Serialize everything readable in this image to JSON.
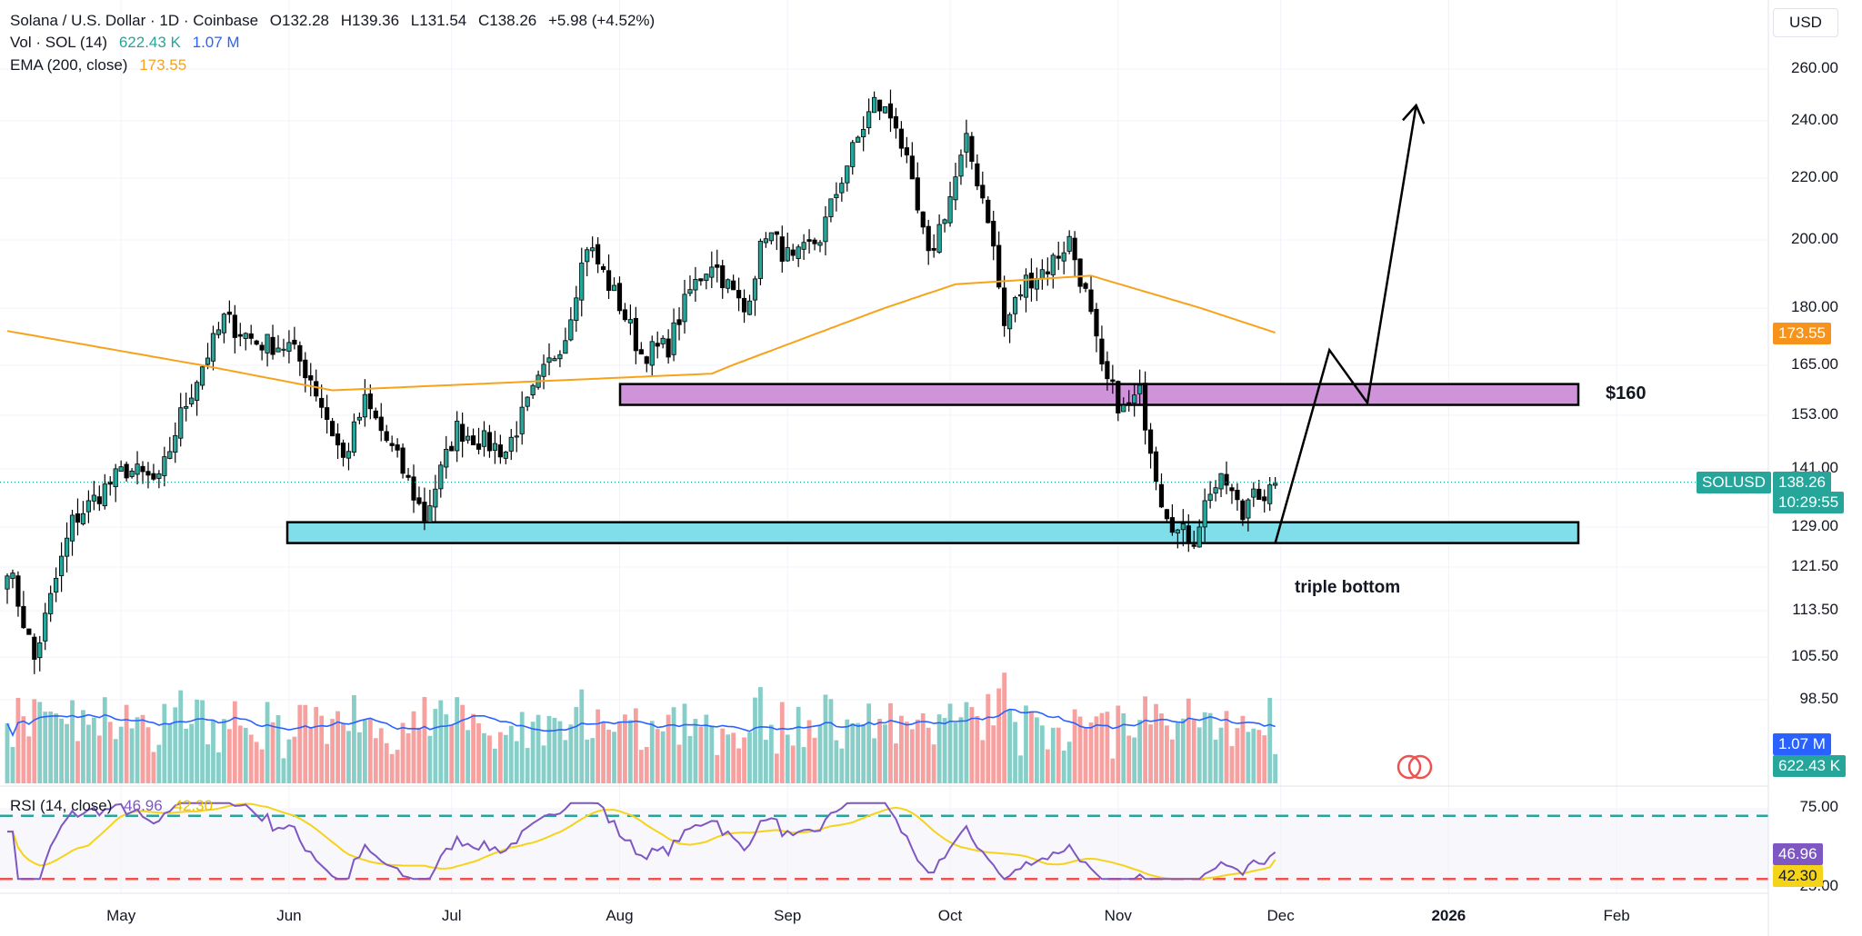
{
  "header": {
    "symbol_title": "Solana / U.S. Dollar · 1D · Coinbase",
    "ohlc": {
      "open": "O132.28",
      "high": "H139.36",
      "low": "L131.54",
      "close": "C138.26",
      "change": "+5.98 (+4.52%)"
    },
    "vol_label": "Vol · SOL (14)",
    "vol_value": "622.43 K",
    "vol_ma_value": "1.07 M",
    "ema_label": "EMA (200, close)",
    "ema_value": "173.55",
    "rsi_label": "RSI (14, close)",
    "rsi_value": "46.96",
    "rsi_ma_value": "42.30"
  },
  "currency_button": "USD",
  "badges": {
    "ema": "173.55",
    "symbol": "SOLUSD",
    "last_price": "138.26",
    "countdown": "10:29:55",
    "vol_ma": "1.07 M",
    "vol": "622.43 K",
    "rsi": "46.96",
    "rsi_ma": "42.30"
  },
  "annotations": {
    "resistance_label": "$160",
    "pattern_label": "triple bottom"
  },
  "colors": {
    "up": "#26a69a",
    "down": "#ef5350",
    "ema": "#f7a21b",
    "vol_ma": "#2962ff",
    "rsi": "#7e57c2",
    "rsi_ma": "#f5d31b",
    "resistance_zone": "#ce93d8",
    "support_zone": "#80deea"
  },
  "chart_data": {
    "type": "candlestick",
    "title": "Solana / U.S. Dollar · 1D · Coinbase",
    "price_axis": {
      "ticks": [
        "260.00",
        "240.00",
        "220.00",
        "200.00",
        "180.00",
        "165.00",
        "153.00",
        "141.00",
        "129.00",
        "121.50",
        "113.50",
        "105.50",
        "98.50"
      ],
      "current": 138.26
    },
    "time_axis": {
      "labels": [
        "May",
        "Jun",
        "Jul",
        "Aug",
        "Sep",
        "Oct",
        "Nov",
        "Dec",
        "2026",
        "Feb"
      ]
    },
    "anchors": [
      [
        0,
        122
      ],
      [
        5,
        105
      ],
      [
        12,
        130
      ],
      [
        18,
        137
      ],
      [
        22,
        141
      ],
      [
        28,
        138
      ],
      [
        32,
        153
      ],
      [
        40,
        177
      ],
      [
        46,
        171
      ],
      [
        52,
        170
      ],
      [
        56,
        162
      ],
      [
        62,
        143
      ],
      [
        66,
        156
      ],
      [
        72,
        143
      ],
      [
        77,
        131
      ],
      [
        83,
        150
      ],
      [
        88,
        147
      ],
      [
        92,
        145
      ],
      [
        97,
        158
      ],
      [
        103,
        173
      ],
      [
        107,
        199
      ],
      [
        113,
        181
      ],
      [
        117,
        168
      ],
      [
        122,
        170
      ],
      [
        126,
        185
      ],
      [
        130,
        194
      ],
      [
        136,
        179
      ],
      [
        140,
        203
      ],
      [
        145,
        193
      ],
      [
        150,
        201
      ],
      [
        155,
        225
      ],
      [
        160,
        247
      ],
      [
        164,
        240
      ],
      [
        167,
        216
      ],
      [
        170,
        194
      ],
      [
        174,
        214
      ],
      [
        177,
        232
      ],
      [
        181,
        208
      ],
      [
        184,
        175
      ],
      [
        188,
        188
      ],
      [
        192,
        192
      ],
      [
        196,
        200
      ],
      [
        199,
        184
      ],
      [
        202,
        163
      ],
      [
        206,
        154
      ],
      [
        209,
        158
      ],
      [
        213,
        135
      ],
      [
        216,
        128
      ],
      [
        219,
        127
      ],
      [
        222,
        137
      ],
      [
        225,
        138
      ],
      [
        228,
        131
      ],
      [
        230,
        139
      ],
      [
        232,
        133
      ],
      [
        234,
        138
      ]
    ],
    "ema_200": {
      "start": 174,
      "min": 159,
      "end": 173.55
    },
    "resistance_zone": {
      "low": 155.5,
      "high": 160.5
    },
    "support_zone": {
      "low": 126.0,
      "high": 130.0
    },
    "projection": [
      [
        234,
        126
      ],
      [
        244,
        169
      ],
      [
        251,
        156
      ],
      [
        260,
        246
      ]
    ],
    "rsi": {
      "overbought": 70,
      "oversold": 30,
      "ticks": [
        "75.00",
        "25.00"
      ],
      "current": 46.96,
      "ma": 42.3
    },
    "volume": {
      "current": "622.43K",
      "ma": "1.07M"
    }
  }
}
